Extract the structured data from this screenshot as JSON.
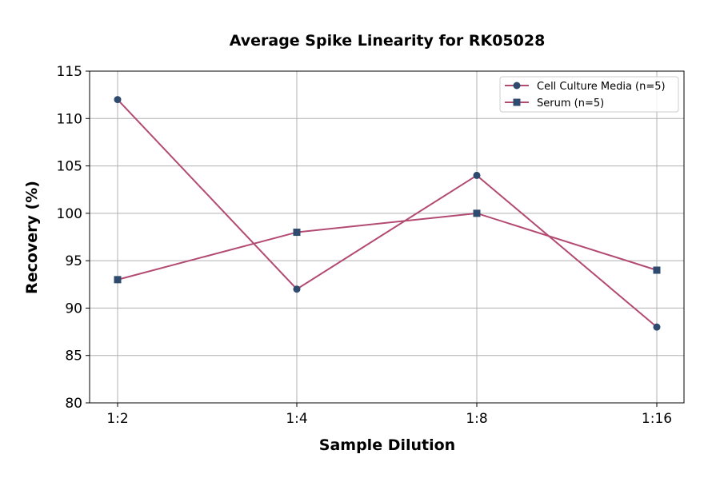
{
  "chart_data": {
    "type": "line",
    "title": "Average Spike Linearity for RK05028",
    "xlabel": "Sample Dilution",
    "ylabel": "Recovery (%)",
    "categories": [
      "1:2",
      "1:4",
      "1:8",
      "1:16"
    ],
    "ylim": [
      80,
      115
    ],
    "yticks": [
      80,
      85,
      90,
      95,
      100,
      105,
      110,
      115
    ],
    "grid": true,
    "legend_position": "top-right",
    "series": [
      {
        "name": "Cell Culture Media (n=5)",
        "marker": "circle",
        "values": [
          112,
          92,
          104,
          88
        ]
      },
      {
        "name": "Serum (n=5)",
        "marker": "square",
        "values": [
          93,
          98,
          100,
          94
        ]
      }
    ],
    "colors": {
      "line": "#b24a72",
      "marker": "#2e4a6e"
    }
  }
}
